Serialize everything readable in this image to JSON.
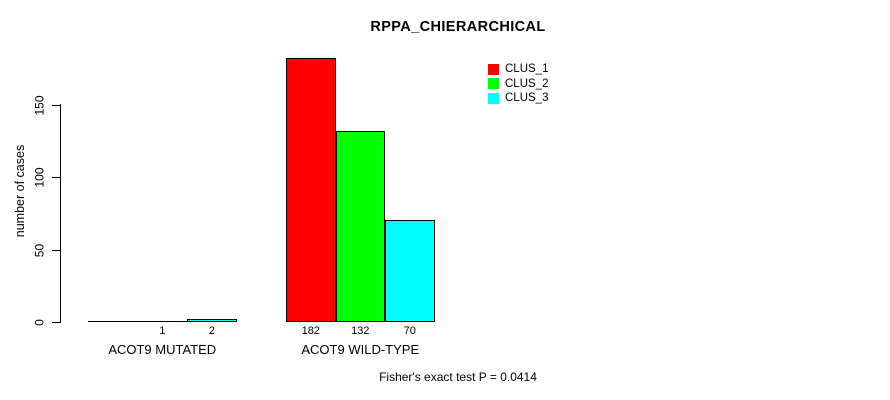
{
  "chart_data": {
    "type": "bar",
    "title": "RPPA_CHIERARCHICAL",
    "ylabel": "number of cases",
    "xlabel": "",
    "yticks": [
      0,
      50,
      100,
      150
    ],
    "ylim": [
      0,
      185
    ],
    "grid": false,
    "legend_position": "top-right-inside",
    "categories": [
      "ACOT9 MUTATED",
      "ACOT9 WILD-TYPE"
    ],
    "series": [
      {
        "name": "CLUS_1",
        "color": "#ff0000",
        "values": [
          0,
          182
        ]
      },
      {
        "name": "CLUS_2",
        "color": "#00ff00",
        "values": [
          1,
          132
        ]
      },
      {
        "name": "CLUS_3",
        "color": "#00ffff",
        "values": [
          2,
          70
        ]
      }
    ],
    "bar_count_labels": [
      [
        "",
        "1",
        "2"
      ],
      [
        "182",
        "132",
        "70"
      ]
    ],
    "annotation": "Fisher's exact test P = 0.0414"
  }
}
